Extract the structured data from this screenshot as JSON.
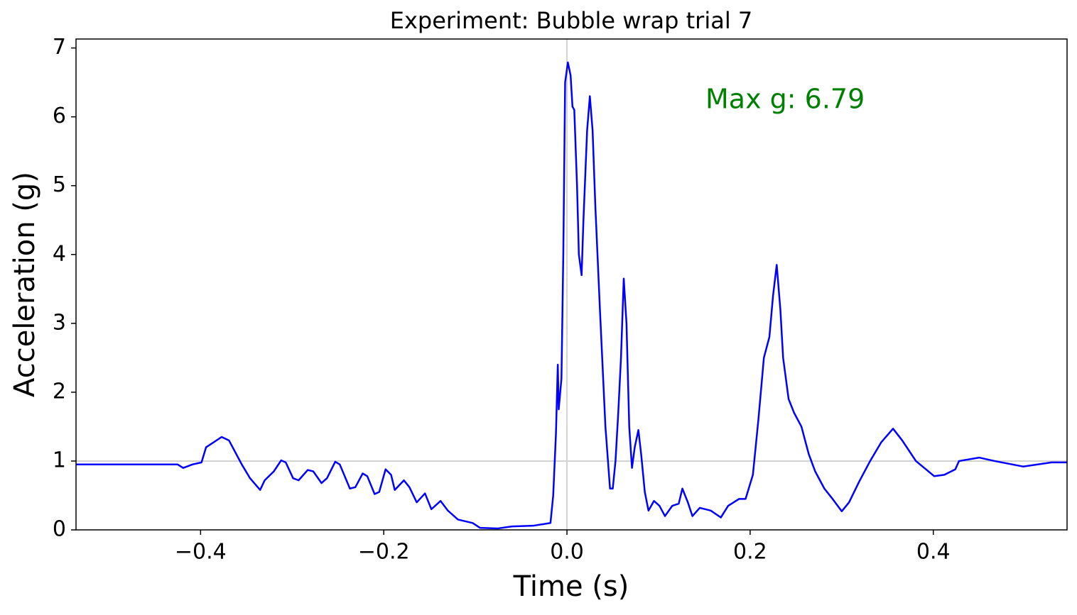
{
  "chart_data": {
    "type": "line",
    "title": "Experiment: Bubble wrap trial 7",
    "x_label": "Time (s)",
    "y_label": "Acceleration (g)",
    "annotation": "Max g: 6.79",
    "xlim": [
      -0.536,
      0.546
    ],
    "ylim": [
      0,
      7.13
    ],
    "xticks": [
      {
        "value": -0.4,
        "label": "−0.4"
      },
      {
        "value": -0.2,
        "label": "−0.2"
      },
      {
        "value": 0,
        "label": "0.0"
      },
      0.2,
      0.4
    ],
    "yticks": [
      0,
      1,
      2,
      3,
      4,
      5,
      6,
      7
    ],
    "hlines": [
      1
    ],
    "vlines": [
      0
    ],
    "reference_color": "#d3d3d3",
    "annotation_color": "#008000",
    "x": [
      -0.536,
      -0.425,
      -0.419,
      -0.409,
      -0.399,
      -0.394,
      -0.386,
      -0.377,
      -0.369,
      -0.363,
      -0.355,
      -0.346,
      -0.335,
      -0.33,
      -0.32,
      -0.312,
      -0.307,
      -0.299,
      -0.293,
      -0.283,
      -0.277,
      -0.268,
      -0.262,
      -0.253,
      -0.248,
      -0.237,
      -0.231,
      -0.223,
      -0.218,
      -0.21,
      -0.205,
      -0.198,
      -0.192,
      -0.188,
      -0.178,
      -0.172,
      -0.164,
      -0.155,
      -0.148,
      -0.138,
      -0.13,
      -0.119,
      -0.103,
      -0.095,
      -0.076,
      -0.06,
      -0.037,
      -0.018,
      -0.015,
      -0.012,
      -0.01,
      -0.009,
      -0.006,
      -0.004,
      -0.002,
      0.001,
      0.004,
      0.006,
      0.008,
      0.011,
      0.013,
      0.016,
      0.018,
      0.022,
      0.025,
      0.028,
      0.031,
      0.036,
      0.042,
      0.047,
      0.05,
      0.053,
      0.056,
      0.059,
      0.062,
      0.065,
      0.068,
      0.071,
      0.074,
      0.078,
      0.081,
      0.085,
      0.089,
      0.095,
      0.101,
      0.107,
      0.115,
      0.122,
      0.126,
      0.132,
      0.137,
      0.145,
      0.157,
      0.168,
      0.176,
      0.188,
      0.195,
      0.203,
      0.209,
      0.215,
      0.221,
      0.225,
      0.229,
      0.233,
      0.236,
      0.242,
      0.248,
      0.256,
      0.264,
      0.271,
      0.281,
      0.29,
      0.3,
      0.308,
      0.319,
      0.331,
      0.343,
      0.356,
      0.366,
      0.381,
      0.401,
      0.412,
      0.424,
      0.428,
      0.45,
      0.467,
      0.498,
      0.529,
      0.546
    ],
    "series": [
      {
        "name": "Acceleration",
        "color": "#0000ff",
        "values": [
          0.95,
          0.95,
          0.9,
          0.95,
          0.98,
          1.2,
          1.27,
          1.35,
          1.3,
          1.15,
          0.95,
          0.75,
          0.58,
          0.72,
          0.85,
          1.01,
          0.98,
          0.75,
          0.72,
          0.87,
          0.85,
          0.68,
          0.75,
          0.99,
          0.95,
          0.6,
          0.62,
          0.82,
          0.78,
          0.52,
          0.55,
          0.88,
          0.8,
          0.58,
          0.72,
          0.62,
          0.4,
          0.53,
          0.3,
          0.42,
          0.28,
          0.15,
          0.1,
          0.03,
          0.02,
          0.05,
          0.06,
          0.1,
          0.5,
          1.4,
          2.4,
          1.75,
          2.2,
          4.0,
          6.5,
          6.79,
          6.6,
          6.15,
          6.1,
          5.0,
          4.0,
          3.7,
          4.5,
          5.8,
          6.3,
          5.8,
          4.7,
          3.2,
          1.5,
          0.6,
          0.6,
          1.0,
          1.7,
          2.5,
          3.65,
          3.0,
          1.5,
          0.9,
          1.2,
          1.45,
          1.1,
          0.55,
          0.28,
          0.42,
          0.35,
          0.2,
          0.35,
          0.38,
          0.6,
          0.4,
          0.2,
          0.32,
          0.28,
          0.18,
          0.35,
          0.45,
          0.45,
          0.8,
          1.6,
          2.5,
          2.8,
          3.4,
          3.85,
          3.2,
          2.5,
          1.9,
          1.7,
          1.5,
          1.1,
          0.85,
          0.6,
          0.45,
          0.27,
          0.4,
          0.7,
          1.0,
          1.27,
          1.47,
          1.3,
          1.0,
          0.78,
          0.8,
          0.88,
          1.0,
          1.05,
          1.0,
          0.92,
          0.98,
          0.98
        ]
      }
    ]
  }
}
